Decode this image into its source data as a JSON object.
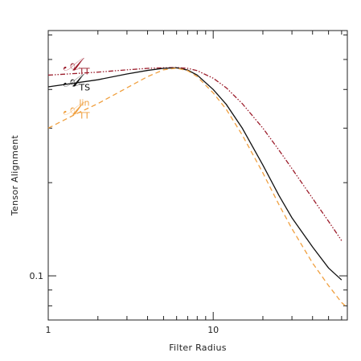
{
  "chart_data": {
    "type": "line",
    "xlabel": "Filter Radius",
    "ylabel": "Tensor Alignment",
    "x_scale": "log",
    "y_scale": "log",
    "xlim": [
      1,
      65
    ],
    "ylim": [
      0.072,
      0.62
    ],
    "x_tick_labels": [
      {
        "value": 1,
        "label": "1"
      },
      {
        "value": 10,
        "label": "10"
      }
    ],
    "y_tick_labels": [
      {
        "value": 0.1,
        "label": "0.1"
      }
    ],
    "grid": false,
    "series": [
      {
        "name": "TT",
        "symbol": "𝒜",
        "subscript": "TT",
        "superscript": "",
        "color": "#9b1b2a",
        "dash": "dash-dot-dot",
        "label_anchor": {
          "x": 1.05,
          "y": 0.445
        },
        "x": [
          1,
          2,
          3,
          4,
          5,
          6,
          7,
          8,
          10,
          12,
          15,
          20,
          25,
          30,
          40,
          50,
          60
        ],
        "y": [
          0.445,
          0.455,
          0.463,
          0.468,
          0.47,
          0.471,
          0.468,
          0.46,
          0.435,
          0.405,
          0.36,
          0.3,
          0.255,
          0.222,
          0.178,
          0.15,
          0.13
        ]
      },
      {
        "name": "TS",
        "symbol": "𝒜",
        "subscript": "TS",
        "superscript": "",
        "color": "#111111",
        "dash": "solid",
        "label_anchor": {
          "x": 1.05,
          "y": 0.395
        },
        "x": [
          1,
          2,
          3,
          4,
          5,
          6,
          7,
          8,
          10,
          12,
          15,
          20,
          25,
          30,
          40,
          50,
          60
        ],
        "y": [
          0.408,
          0.43,
          0.449,
          0.461,
          0.468,
          0.47,
          0.462,
          0.445,
          0.4,
          0.358,
          0.3,
          0.228,
          0.182,
          0.154,
          0.124,
          0.106,
          0.097
        ]
      },
      {
        "name": "TT lin",
        "symbol": "𝒜",
        "subscript": "TT",
        "superscript": "lin",
        "color": "#f0a040",
        "dash": "dashed",
        "label_anchor": {
          "x": 1.05,
          "y": 0.32
        },
        "x": [
          1,
          1.5,
          2,
          3,
          4,
          5,
          6,
          7,
          8,
          10,
          12,
          15,
          20,
          25,
          30,
          40,
          50,
          60,
          65
        ],
        "y": [
          0.3,
          0.335,
          0.36,
          0.405,
          0.44,
          0.463,
          0.469,
          0.46,
          0.44,
          0.39,
          0.345,
          0.285,
          0.215,
          0.17,
          0.142,
          0.11,
          0.093,
          0.082,
          0.079
        ]
      }
    ]
  }
}
